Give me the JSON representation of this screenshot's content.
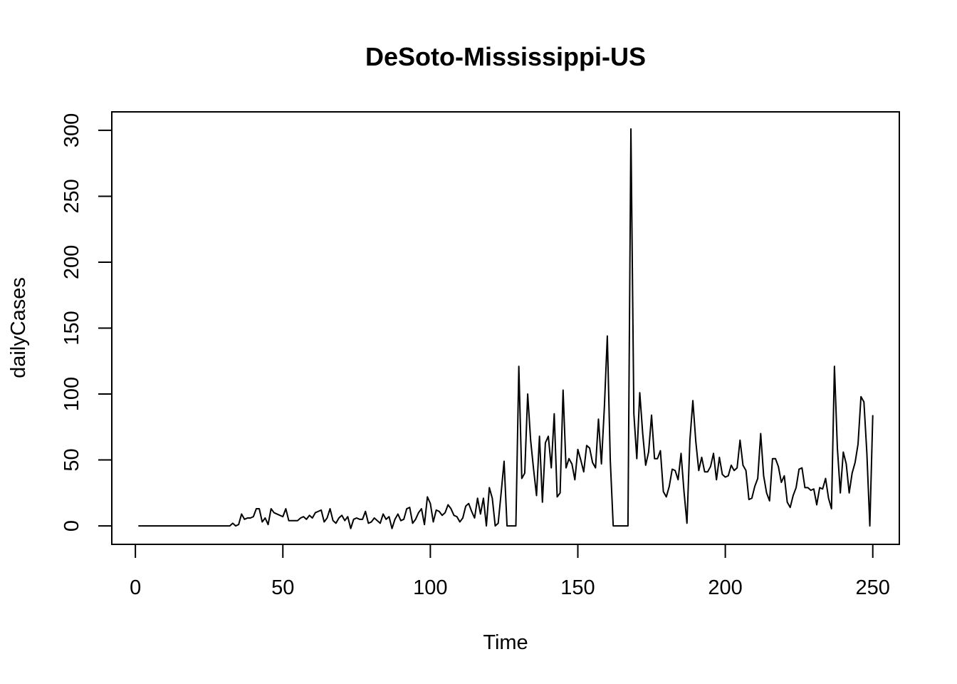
{
  "chart_data": {
    "type": "line",
    "title": "DeSoto-Mississippi-US",
    "xlabel": "Time",
    "ylabel": "dailyCases",
    "xlim": [
      -8,
      259
    ],
    "ylim": [
      -14,
      314
    ],
    "x_ticks": [
      0,
      50,
      100,
      150,
      200,
      250
    ],
    "y_ticks": [
      0,
      50,
      100,
      150,
      200,
      250,
      300
    ],
    "grid": false,
    "series": [
      {
        "values": [
          0,
          0,
          0,
          0,
          0,
          0,
          0,
          0,
          0,
          0,
          0,
          0,
          0,
          0,
          0,
          0,
          0,
          0,
          0,
          0,
          0,
          0,
          0,
          0,
          0,
          0,
          0,
          0,
          0,
          0,
          0,
          0,
          2,
          0,
          1,
          9,
          5,
          6,
          6,
          7,
          13,
          13,
          3,
          6,
          1,
          13,
          10,
          9,
          8,
          7,
          13,
          4,
          4,
          4,
          4,
          6,
          7,
          5,
          8,
          6,
          10,
          11,
          12,
          3,
          6,
          13,
          4,
          2,
          6,
          8,
          4,
          7,
          -2,
          5,
          6,
          5,
          5,
          11,
          2,
          3,
          6,
          4,
          2,
          9,
          5,
          7,
          -2,
          5,
          9,
          4,
          5,
          13,
          14,
          2,
          5,
          10,
          13,
          1,
          22,
          17,
          3,
          12,
          11,
          8,
          10,
          16,
          13,
          8,
          7,
          3,
          6,
          15,
          17,
          11,
          6,
          21,
          9,
          21,
          0,
          29,
          21,
          0,
          2,
          25,
          49,
          0,
          0,
          0,
          0,
          121,
          36,
          40,
          100,
          65,
          43,
          23,
          68,
          18,
          63,
          68,
          44,
          85,
          22,
          25,
          103,
          44,
          51,
          47,
          35,
          58,
          50,
          41,
          61,
          59,
          48,
          44,
          81,
          47,
          90,
          144,
          50,
          0,
          0,
          0,
          0,
          0,
          0,
          301,
          85,
          51,
          101,
          70,
          46,
          56,
          84,
          51,
          51,
          57,
          26,
          22,
          30,
          43,
          42,
          35,
          55,
          26,
          2,
          65,
          95,
          64,
          42,
          52,
          41,
          41,
          45,
          55,
          35,
          52,
          39,
          37,
          38,
          46,
          42,
          44,
          65,
          46,
          42,
          20,
          21,
          30,
          36,
          70,
          38,
          25,
          19,
          51,
          51,
          45,
          33,
          38,
          18,
          14,
          23,
          29,
          43,
          44,
          29,
          29,
          27,
          28,
          16,
          29,
          28,
          36,
          21,
          13,
          121,
          59,
          25,
          56,
          47,
          25,
          40,
          48,
          62,
          98,
          94,
          55,
          0,
          84
        ]
      }
    ]
  }
}
